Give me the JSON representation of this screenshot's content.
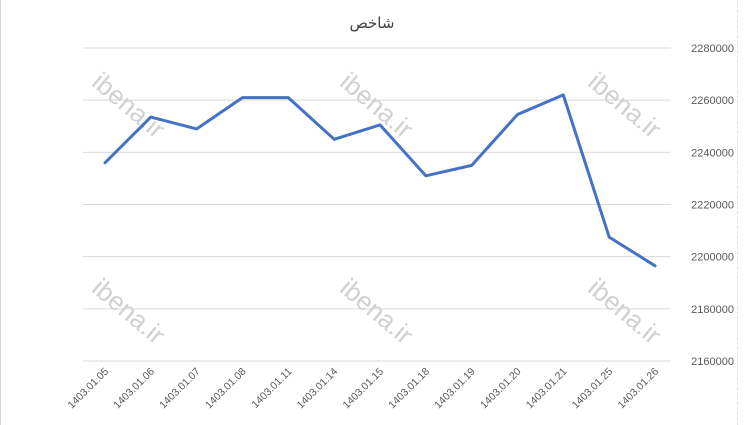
{
  "chart_data": {
    "type": "line",
    "title": "شاخص",
    "xlabel": "",
    "ylabel": "",
    "categories": [
      "1403.01.05",
      "1403.01.06",
      "1403.01.07",
      "1403.01.08",
      "1403.01.11",
      "1403.01.14",
      "1403.01.15",
      "1403.01.18",
      "1403.01.19",
      "1403.01.20",
      "1403.01.21",
      "1403.01.25",
      "1403.01.26"
    ],
    "series": [
      {
        "values": [
          2236000,
          2253500,
          2249000,
          2261000,
          2261000,
          2245000,
          2250500,
          2231000,
          2235000,
          2254500,
          2262000,
          2207500,
          2196500
        ],
        "color": "#4472c4"
      }
    ],
    "ylim": [
      2160000,
      2280000
    ],
    "yticks": [
      2160000,
      2180000,
      2200000,
      2220000,
      2240000,
      2260000,
      2280000
    ],
    "y_axis_position": "right",
    "grid": true
  },
  "watermark": "ibena.ir"
}
